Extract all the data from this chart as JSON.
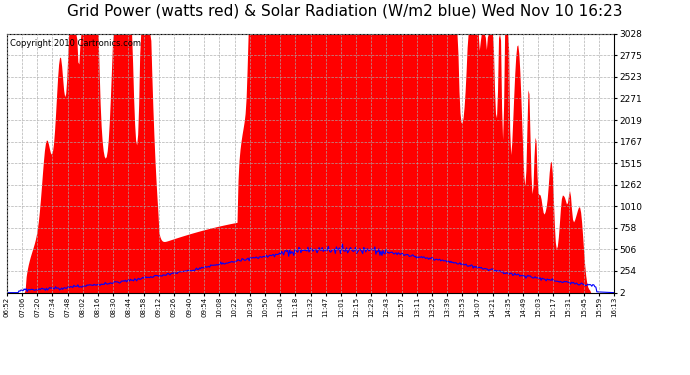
{
  "title": "Grid Power (watts red) & Solar Radiation (W/m2 blue) Wed Nov 10 16:23",
  "copyright": "Copyright 2010 Cartronics.com",
  "background_color": "#ffffff",
  "plot_bg_color": "#ffffff",
  "grid_color": "#aaaaaa",
  "yticks": [
    1.8,
    253.9,
    506.1,
    758.2,
    1010.4,
    1262.5,
    1514.6,
    1766.8,
    2018.9,
    2271.1,
    2523.2,
    2775.4,
    3027.5
  ],
  "ymin": 1.8,
  "ymax": 3027.5,
  "red_color": "#ff0000",
  "blue_color": "#0000ff",
  "title_fontsize": 11,
  "copyright_fontsize": 6,
  "x_labels": [
    "06:52",
    "07:06",
    "07:20",
    "07:34",
    "07:48",
    "08:02",
    "08:16",
    "08:30",
    "08:44",
    "08:58",
    "09:12",
    "09:26",
    "09:40",
    "09:54",
    "10:08",
    "10:22",
    "10:36",
    "10:50",
    "11:04",
    "11:18",
    "11:32",
    "11:47",
    "12:01",
    "12:15",
    "12:29",
    "12:43",
    "12:57",
    "13:11",
    "13:25",
    "13:39",
    "13:53",
    "14:07",
    "14:21",
    "14:35",
    "14:49",
    "15:03",
    "15:17",
    "15:31",
    "15:45",
    "15:59",
    "16:13"
  ]
}
